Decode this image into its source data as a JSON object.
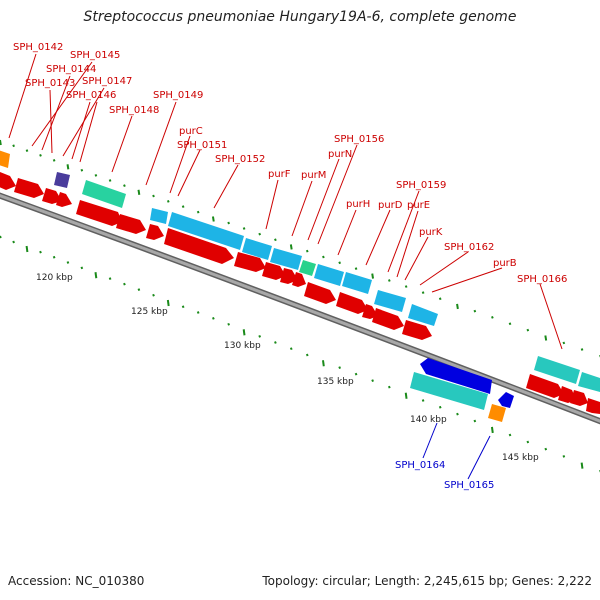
{
  "title": "Streptococcus pneumoniae Hungary19A-6, complete genome",
  "footer": {
    "accession": "Accession: NC_010380",
    "stats": "Topology: circular; Length: 2,245,615 bp; Genes: 2,222"
  },
  "colors": {
    "forward_cds": "#e00000",
    "reverse_cds": "#0000e0",
    "blue_feature": "#1eb4e6",
    "teal_feature": "#28c8be",
    "green_feature": "#28d28c",
    "orange_feature": "#ff8c00",
    "purple_feature": "#4a3c9c",
    "backbone": "#808080",
    "tick": "#1a8a1a",
    "label_forward": "#cc0000",
    "label_reverse": "#0000cc"
  },
  "scale_labels": [
    "120 kbp",
    "125 kbp",
    "130 kbp",
    "135 kbp",
    "140 kbp",
    "145 kbp"
  ],
  "gene_labels": [
    {
      "text": "SPH_0142",
      "strand": "forward"
    },
    {
      "text": "SPH_0145",
      "strand": "forward"
    },
    {
      "text": "SPH_0144",
      "strand": "forward"
    },
    {
      "text": "SPH_0143",
      "strand": "forward"
    },
    {
      "text": "SPH_0147",
      "strand": "forward"
    },
    {
      "text": "SPH_0146",
      "strand": "forward"
    },
    {
      "text": "SPH_0148",
      "strand": "forward"
    },
    {
      "text": "SPH_0149",
      "strand": "forward"
    },
    {
      "text": "purC",
      "strand": "forward"
    },
    {
      "text": "SPH_0151",
      "strand": "forward"
    },
    {
      "text": "SPH_0152",
      "strand": "forward"
    },
    {
      "text": "SPH_0156",
      "strand": "forward"
    },
    {
      "text": "purN",
      "strand": "forward"
    },
    {
      "text": "purF",
      "strand": "forward"
    },
    {
      "text": "purM",
      "strand": "forward"
    },
    {
      "text": "SPH_0159",
      "strand": "forward"
    },
    {
      "text": "purH",
      "strand": "forward"
    },
    {
      "text": "purD",
      "strand": "forward"
    },
    {
      "text": "purE",
      "strand": "forward"
    },
    {
      "text": "purK",
      "strand": "forward"
    },
    {
      "text": "SPH_0162",
      "strand": "forward"
    },
    {
      "text": "purB",
      "strand": "forward"
    },
    {
      "text": "SPH_0166",
      "strand": "forward"
    },
    {
      "text": "SPH_0164",
      "strand": "reverse"
    },
    {
      "text": "SPH_0165",
      "strand": "reverse"
    }
  ]
}
